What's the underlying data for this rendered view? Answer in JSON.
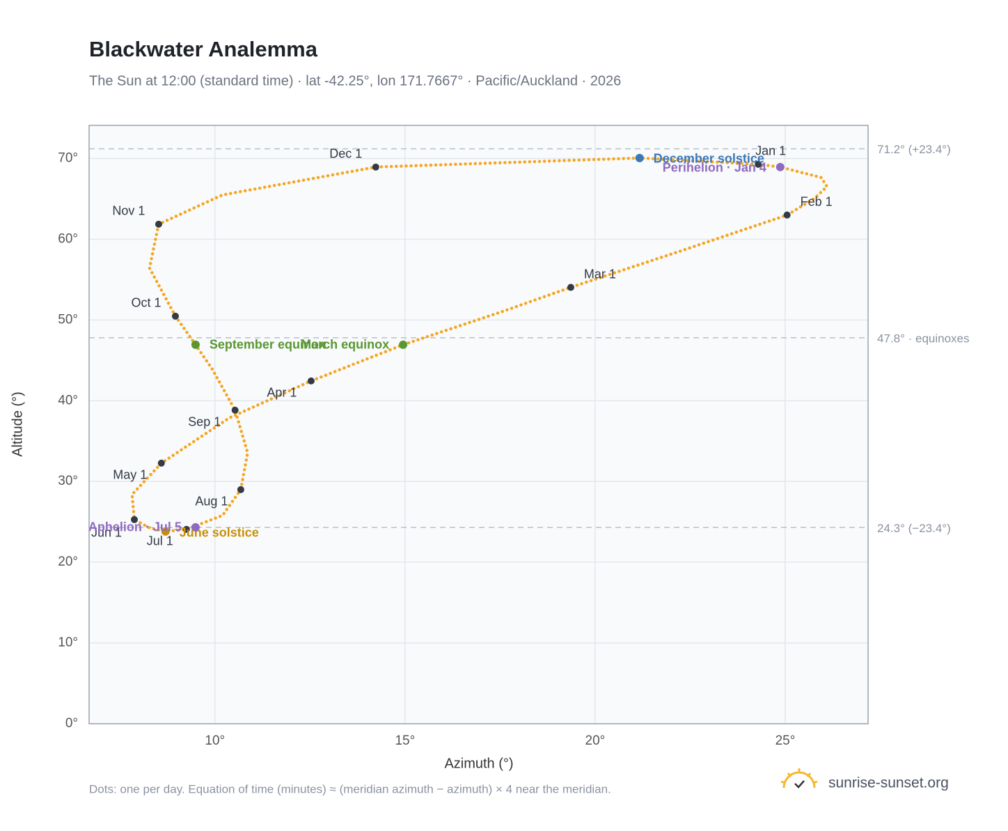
{
  "chart_data": {
    "type": "analemma",
    "title": "Blackwater Analemma",
    "subtitle": "The Sun at 12:00 (standard time) · lat -42.25°, lon 171.7667° · Pacific/Auckland · 2026",
    "x_label": "Azimuth (°)",
    "y_label": "Altitude (°)",
    "xlim": [
      6.69,
      27.18
    ],
    "ylim": [
      0,
      74.1
    ],
    "xticks": [
      {
        "value": 10,
        "label": "10°"
      },
      {
        "value": 15,
        "label": "15°"
      },
      {
        "value": 20,
        "label": "20°"
      },
      {
        "value": 25,
        "label": "25°"
      }
    ],
    "yticks": [
      {
        "value": 0,
        "label": "0°"
      },
      {
        "value": 10,
        "label": "10°"
      },
      {
        "value": 20,
        "label": "20°"
      },
      {
        "value": 30,
        "label": "30°"
      },
      {
        "value": 40,
        "label": "40°"
      },
      {
        "value": 50,
        "label": "50°"
      },
      {
        "value": 60,
        "label": "60°"
      },
      {
        "value": 70,
        "label": "70°"
      }
    ],
    "grid": true,
    "reference_lines": [
      {
        "value": 71.2,
        "label": "71.2° (+23.4°)"
      },
      {
        "value": 47.8,
        "label": "47.8° · equinoxes"
      },
      {
        "value": 24.3,
        "label": "24.3° (−23.4°)"
      }
    ],
    "path": {
      "color": "#f5a623",
      "x": [
        24.29,
        24.87,
        25.95,
        26.1,
        25.77,
        25.05,
        22.29,
        19.36,
        17.53,
        14.95,
        12.53,
        10.38,
        8.59,
        7.82,
        7.88,
        8.28,
        8.7,
        9.25,
        10.2,
        10.68,
        10.86,
        10.53,
        9.93,
        9.49,
        8.96,
        8.28,
        8.52,
        10.2,
        14.23,
        21.17,
        24.29
      ],
      "y": [
        69.28,
        68.94,
        67.64,
        66.52,
        65.06,
        63.0,
        58.61,
        54.04,
        51.0,
        46.94,
        42.45,
        37.88,
        32.27,
        28.39,
        25.28,
        24.25,
        23.81,
        24.07,
        25.8,
        28.99,
        33.56,
        38.83,
        43.92,
        46.94,
        50.47,
        56.43,
        61.86,
        65.49,
        68.94,
        70.06,
        69.28
      ]
    },
    "month_markers": {
      "color": "#333a45",
      "labels": [
        "Jan 1",
        "Feb 1",
        "Mar 1",
        "Apr 1",
        "May 1",
        "Jun 1",
        "Jul 1",
        "Aug 1",
        "Sep 1",
        "Oct 1",
        "Nov 1",
        "Dec 1"
      ],
      "x": [
        24.29,
        25.05,
        19.36,
        12.53,
        8.59,
        7.88,
        9.25,
        10.68,
        10.53,
        8.96,
        8.52,
        14.23
      ],
      "y": [
        69.28,
        63.0,
        54.04,
        42.45,
        32.27,
        25.28,
        24.07,
        28.99,
        38.83,
        50.47,
        61.86,
        68.94
      ]
    },
    "events": [
      {
        "name": "December solstice",
        "color": "#3a78b8",
        "x": 21.17,
        "y": 70.06
      },
      {
        "name": "Perihelion · Jan 4",
        "color": "#8e6bbf",
        "x": 24.87,
        "y": 68.94
      },
      {
        "name": "March equinox",
        "color": "#5a9631",
        "x": 14.95,
        "y": 46.94
      },
      {
        "name": "September equinox",
        "color": "#5a9631",
        "x": 9.49,
        "y": 46.94
      },
      {
        "name": "June solstice",
        "color": "#c8900a",
        "x": 8.7,
        "y": 23.81
      },
      {
        "name": "Aphelion · Jul 5",
        "color": "#8e6bbf",
        "x": 9.49,
        "y": 24.33
      }
    ],
    "footnote": "Dots: one per day. Equation of time (minutes) ≈ (meridian azimuth − azimuth) × 4 near the meridian.",
    "brand": "sunrise-sunset.org"
  }
}
